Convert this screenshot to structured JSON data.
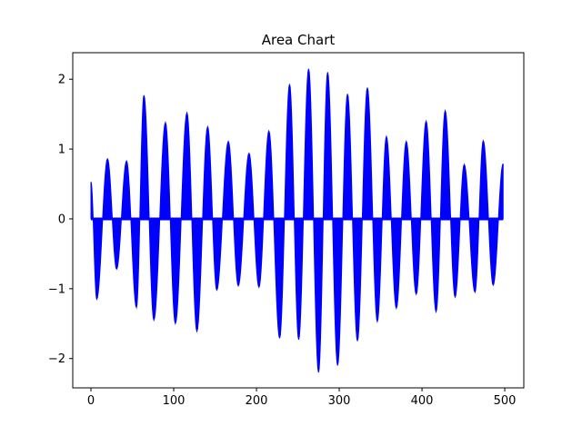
{
  "chart_data": {
    "type": "area",
    "title": "Area Chart",
    "xlabel": "",
    "ylabel": "",
    "xlim": [
      -22,
      523
    ],
    "ylim": [
      -2.42,
      2.38
    ],
    "xticks": [
      0,
      100,
      200,
      300,
      400,
      500
    ],
    "yticks": [
      -2,
      -1,
      0,
      1,
      2
    ],
    "ytick_labels": [
      "−2",
      "−1",
      "0",
      "1",
      "2"
    ],
    "grid": false,
    "legend": "none",
    "fill_color": "#0000ff",
    "baseline": 0,
    "series": [
      {
        "x": [
          0,
          7,
          20,
          31,
          43,
          55,
          64,
          76,
          90,
          102,
          116,
          128,
          141,
          152,
          166,
          178,
          191,
          203,
          215,
          228,
          240,
          251,
          263,
          275,
          286,
          298,
          310,
          322,
          334,
          346,
          357,
          369,
          381,
          393,
          405,
          417,
          428,
          440,
          451,
          464,
          474,
          486,
          498
        ],
        "y": [
          0.53,
          -1.15,
          0.86,
          -0.72,
          0.83,
          -1.27,
          1.77,
          -1.45,
          1.38,
          -1.5,
          1.52,
          -1.61,
          1.32,
          -1.02,
          1.11,
          -0.96,
          0.94,
          -0.98,
          1.26,
          -1.71,
          1.93,
          -1.73,
          2.15,
          -2.2,
          2.1,
          -2.1,
          1.79,
          -1.75,
          1.88,
          -1.47,
          1.18,
          -1.28,
          1.11,
          -1.08,
          1.4,
          -1.33,
          1.55,
          -1.12,
          0.78,
          -1.05,
          1.12,
          -0.95,
          0.79
        ]
      }
    ]
  }
}
